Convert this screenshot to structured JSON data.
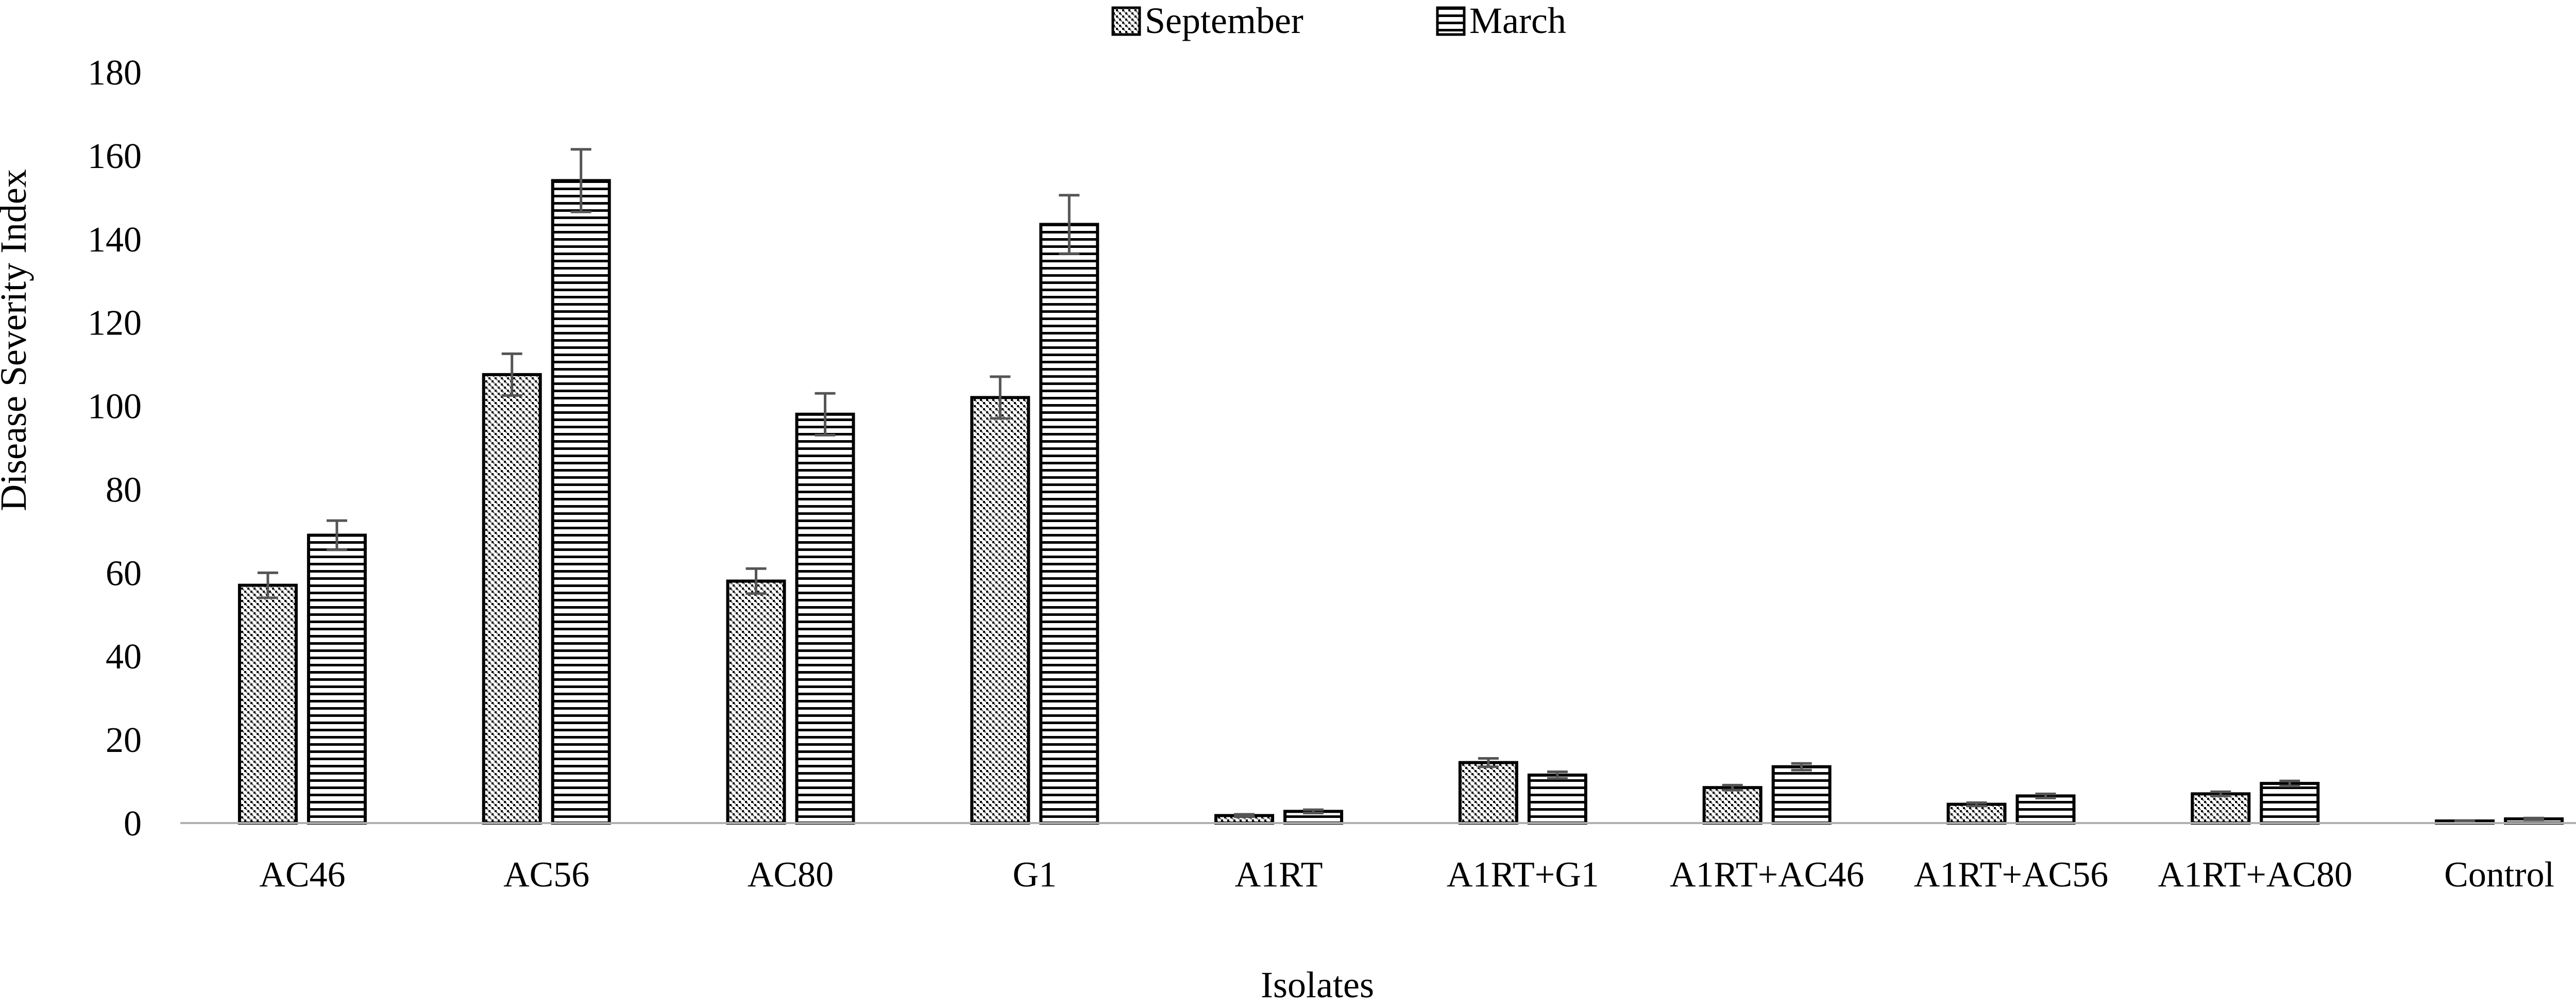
{
  "chart_data": {
    "type": "bar",
    "xlabel": "Isolates",
    "ylabel": "Disease Severity Index",
    "ylim": [
      0,
      180
    ],
    "yticks": [
      0,
      20,
      40,
      60,
      80,
      100,
      120,
      140,
      160,
      180
    ],
    "grid": false,
    "legend_position": "top-center",
    "categories": [
      "AC46",
      "AC56",
      "AC80",
      "G1",
      "A1RT",
      "A1RT+G1",
      "A1RT+AC46",
      "A1RT+AC56",
      "A1RT+AC80",
      "Control"
    ],
    "series": [
      {
        "name": "September",
        "pattern": "crosshatch",
        "values": [
          57,
          107.5,
          58,
          102,
          1.8,
          14.5,
          8.5,
          4.5,
          7,
          0.5
        ],
        "errors": [
          3,
          5,
          3,
          5,
          0.3,
          1,
          0.6,
          0.4,
          0.5,
          0.1
        ]
      },
      {
        "name": "March",
        "pattern": "horizontal-lines",
        "values": [
          69,
          154,
          98,
          143.5,
          2.8,
          11.5,
          13.5,
          6.5,
          9.5,
          1
        ],
        "errors": [
          3.5,
          7.5,
          5,
          7,
          0.4,
          0.8,
          0.8,
          0.5,
          0.6,
          0.2
        ]
      }
    ],
    "colors": {
      "bar_edge": "#000000",
      "error_bar": "#555555",
      "axis": "#b0b0b0"
    }
  }
}
